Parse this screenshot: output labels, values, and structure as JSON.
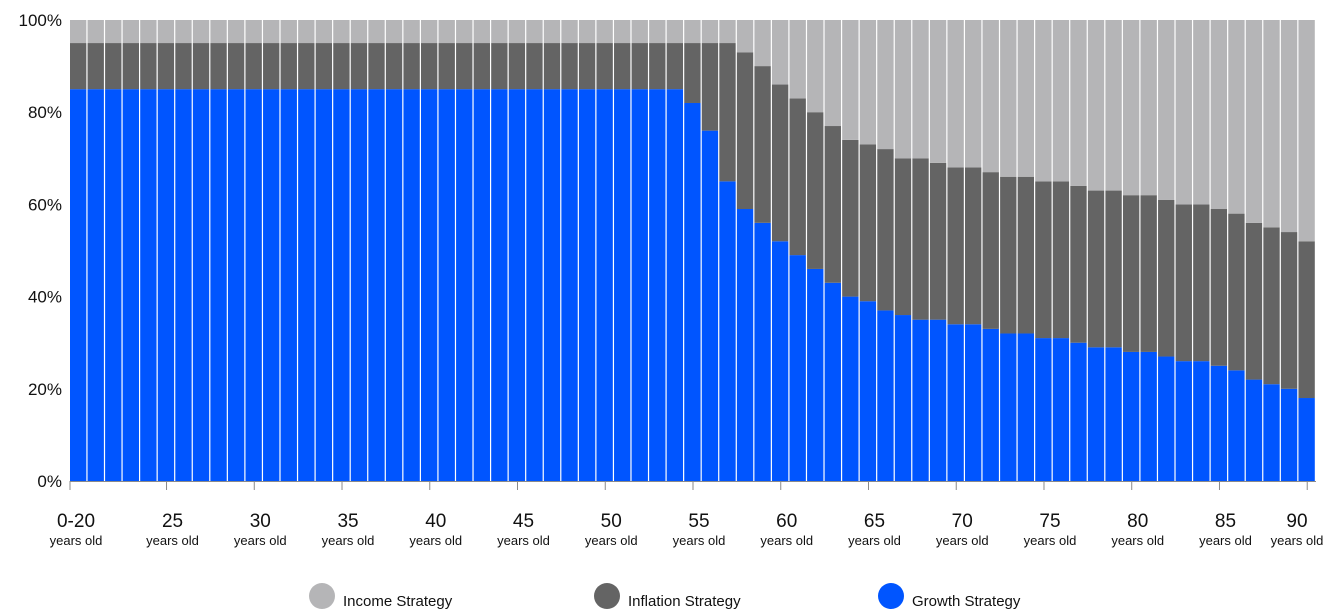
{
  "chart_data": {
    "type": "bar",
    "stacked": true,
    "ylim": [
      0,
      100
    ],
    "yticks": [
      "0%",
      "20%",
      "40%",
      "60%",
      "80%",
      "100%"
    ],
    "ytick_values": [
      0,
      20,
      40,
      60,
      80,
      100
    ],
    "x_ticks": [
      {
        "label": "0-20",
        "sub": "years old",
        "age": 20
      },
      {
        "label": "25",
        "sub": "years old",
        "age": 25
      },
      {
        "label": "30",
        "sub": "years old",
        "age": 30
      },
      {
        "label": "35",
        "sub": "years old",
        "age": 35
      },
      {
        "label": "40",
        "sub": "years old",
        "age": 40
      },
      {
        "label": "45",
        "sub": "years old",
        "age": 45
      },
      {
        "label": "50",
        "sub": "years old",
        "age": 50
      },
      {
        "label": "55",
        "sub": "years old",
        "age": 55
      },
      {
        "label": "60",
        "sub": "years old",
        "age": 60
      },
      {
        "label": "65",
        "sub": "years old",
        "age": 65
      },
      {
        "label": "70",
        "sub": "years old",
        "age": 70
      },
      {
        "label": "75",
        "sub": "years old",
        "age": 75
      },
      {
        "label": "80",
        "sub": "years old",
        "age": 80
      },
      {
        "label": "85",
        "sub": "years old",
        "age": 85
      },
      {
        "label": "90",
        "sub": "years old",
        "age": 90
      }
    ],
    "ages": [
      20,
      21,
      22,
      23,
      24,
      25,
      26,
      27,
      28,
      29,
      30,
      31,
      32,
      33,
      34,
      35,
      36,
      37,
      38,
      39,
      40,
      41,
      42,
      43,
      44,
      45,
      46,
      47,
      48,
      49,
      50,
      51,
      52,
      53,
      54,
      55,
      56,
      57,
      58,
      59,
      60,
      61,
      62,
      63,
      64,
      65,
      66,
      67,
      68,
      69,
      70,
      71,
      72,
      73,
      74,
      75,
      76,
      77,
      78,
      79,
      80,
      81,
      82,
      83,
      84,
      85,
      86,
      87,
      88,
      89,
      90
    ],
    "series": [
      {
        "name": "Growth Strategy",
        "color": "#0055ff",
        "values": [
          85,
          85,
          85,
          85,
          85,
          85,
          85,
          85,
          85,
          85,
          85,
          85,
          85,
          85,
          85,
          85,
          85,
          85,
          85,
          85,
          85,
          85,
          85,
          85,
          85,
          85,
          85,
          85,
          85,
          85,
          85,
          85,
          85,
          85,
          85,
          82,
          76,
          65,
          59,
          56,
          52,
          49,
          46,
          43,
          40,
          39,
          37,
          36,
          35,
          35,
          34,
          34,
          33,
          32,
          32,
          31,
          31,
          30,
          29,
          29,
          28,
          28,
          27,
          26,
          26,
          25,
          24,
          22,
          21,
          20,
          18
        ]
      },
      {
        "name": "Inflation Strategy",
        "color": "#646464",
        "values": [
          10,
          10,
          10,
          10,
          10,
          10,
          10,
          10,
          10,
          10,
          10,
          10,
          10,
          10,
          10,
          10,
          10,
          10,
          10,
          10,
          10,
          10,
          10,
          10,
          10,
          10,
          10,
          10,
          10,
          10,
          10,
          10,
          10,
          10,
          10,
          13,
          19,
          30,
          34,
          34,
          34,
          34,
          34,
          34,
          34,
          34,
          35,
          34,
          35,
          34,
          34,
          34,
          34,
          34,
          34,
          34,
          34,
          34,
          34,
          34,
          34,
          34,
          34,
          34,
          34,
          34,
          34,
          34,
          34,
          34,
          34
        ]
      },
      {
        "name": "Income Strategy",
        "color": "#b5b5b7",
        "values": [
          5,
          5,
          5,
          5,
          5,
          5,
          5,
          5,
          5,
          5,
          5,
          5,
          5,
          5,
          5,
          5,
          5,
          5,
          5,
          5,
          5,
          5,
          5,
          5,
          5,
          5,
          5,
          5,
          5,
          5,
          5,
          5,
          5,
          5,
          5,
          5,
          5,
          5,
          7,
          10,
          14,
          17,
          20,
          23,
          26,
          27,
          28,
          30,
          30,
          31,
          32,
          32,
          33,
          34,
          34,
          35,
          35,
          36,
          37,
          37,
          38,
          38,
          39,
          40,
          40,
          41,
          42,
          44,
          45,
          46,
          48
        ]
      }
    ],
    "legend": [
      {
        "label": "Income Strategy",
        "color": "#b5b5b7"
      },
      {
        "label": "Inflation Strategy",
        "color": "#646464"
      },
      {
        "label": "Growth Strategy",
        "color": "#0055ff"
      }
    ]
  }
}
